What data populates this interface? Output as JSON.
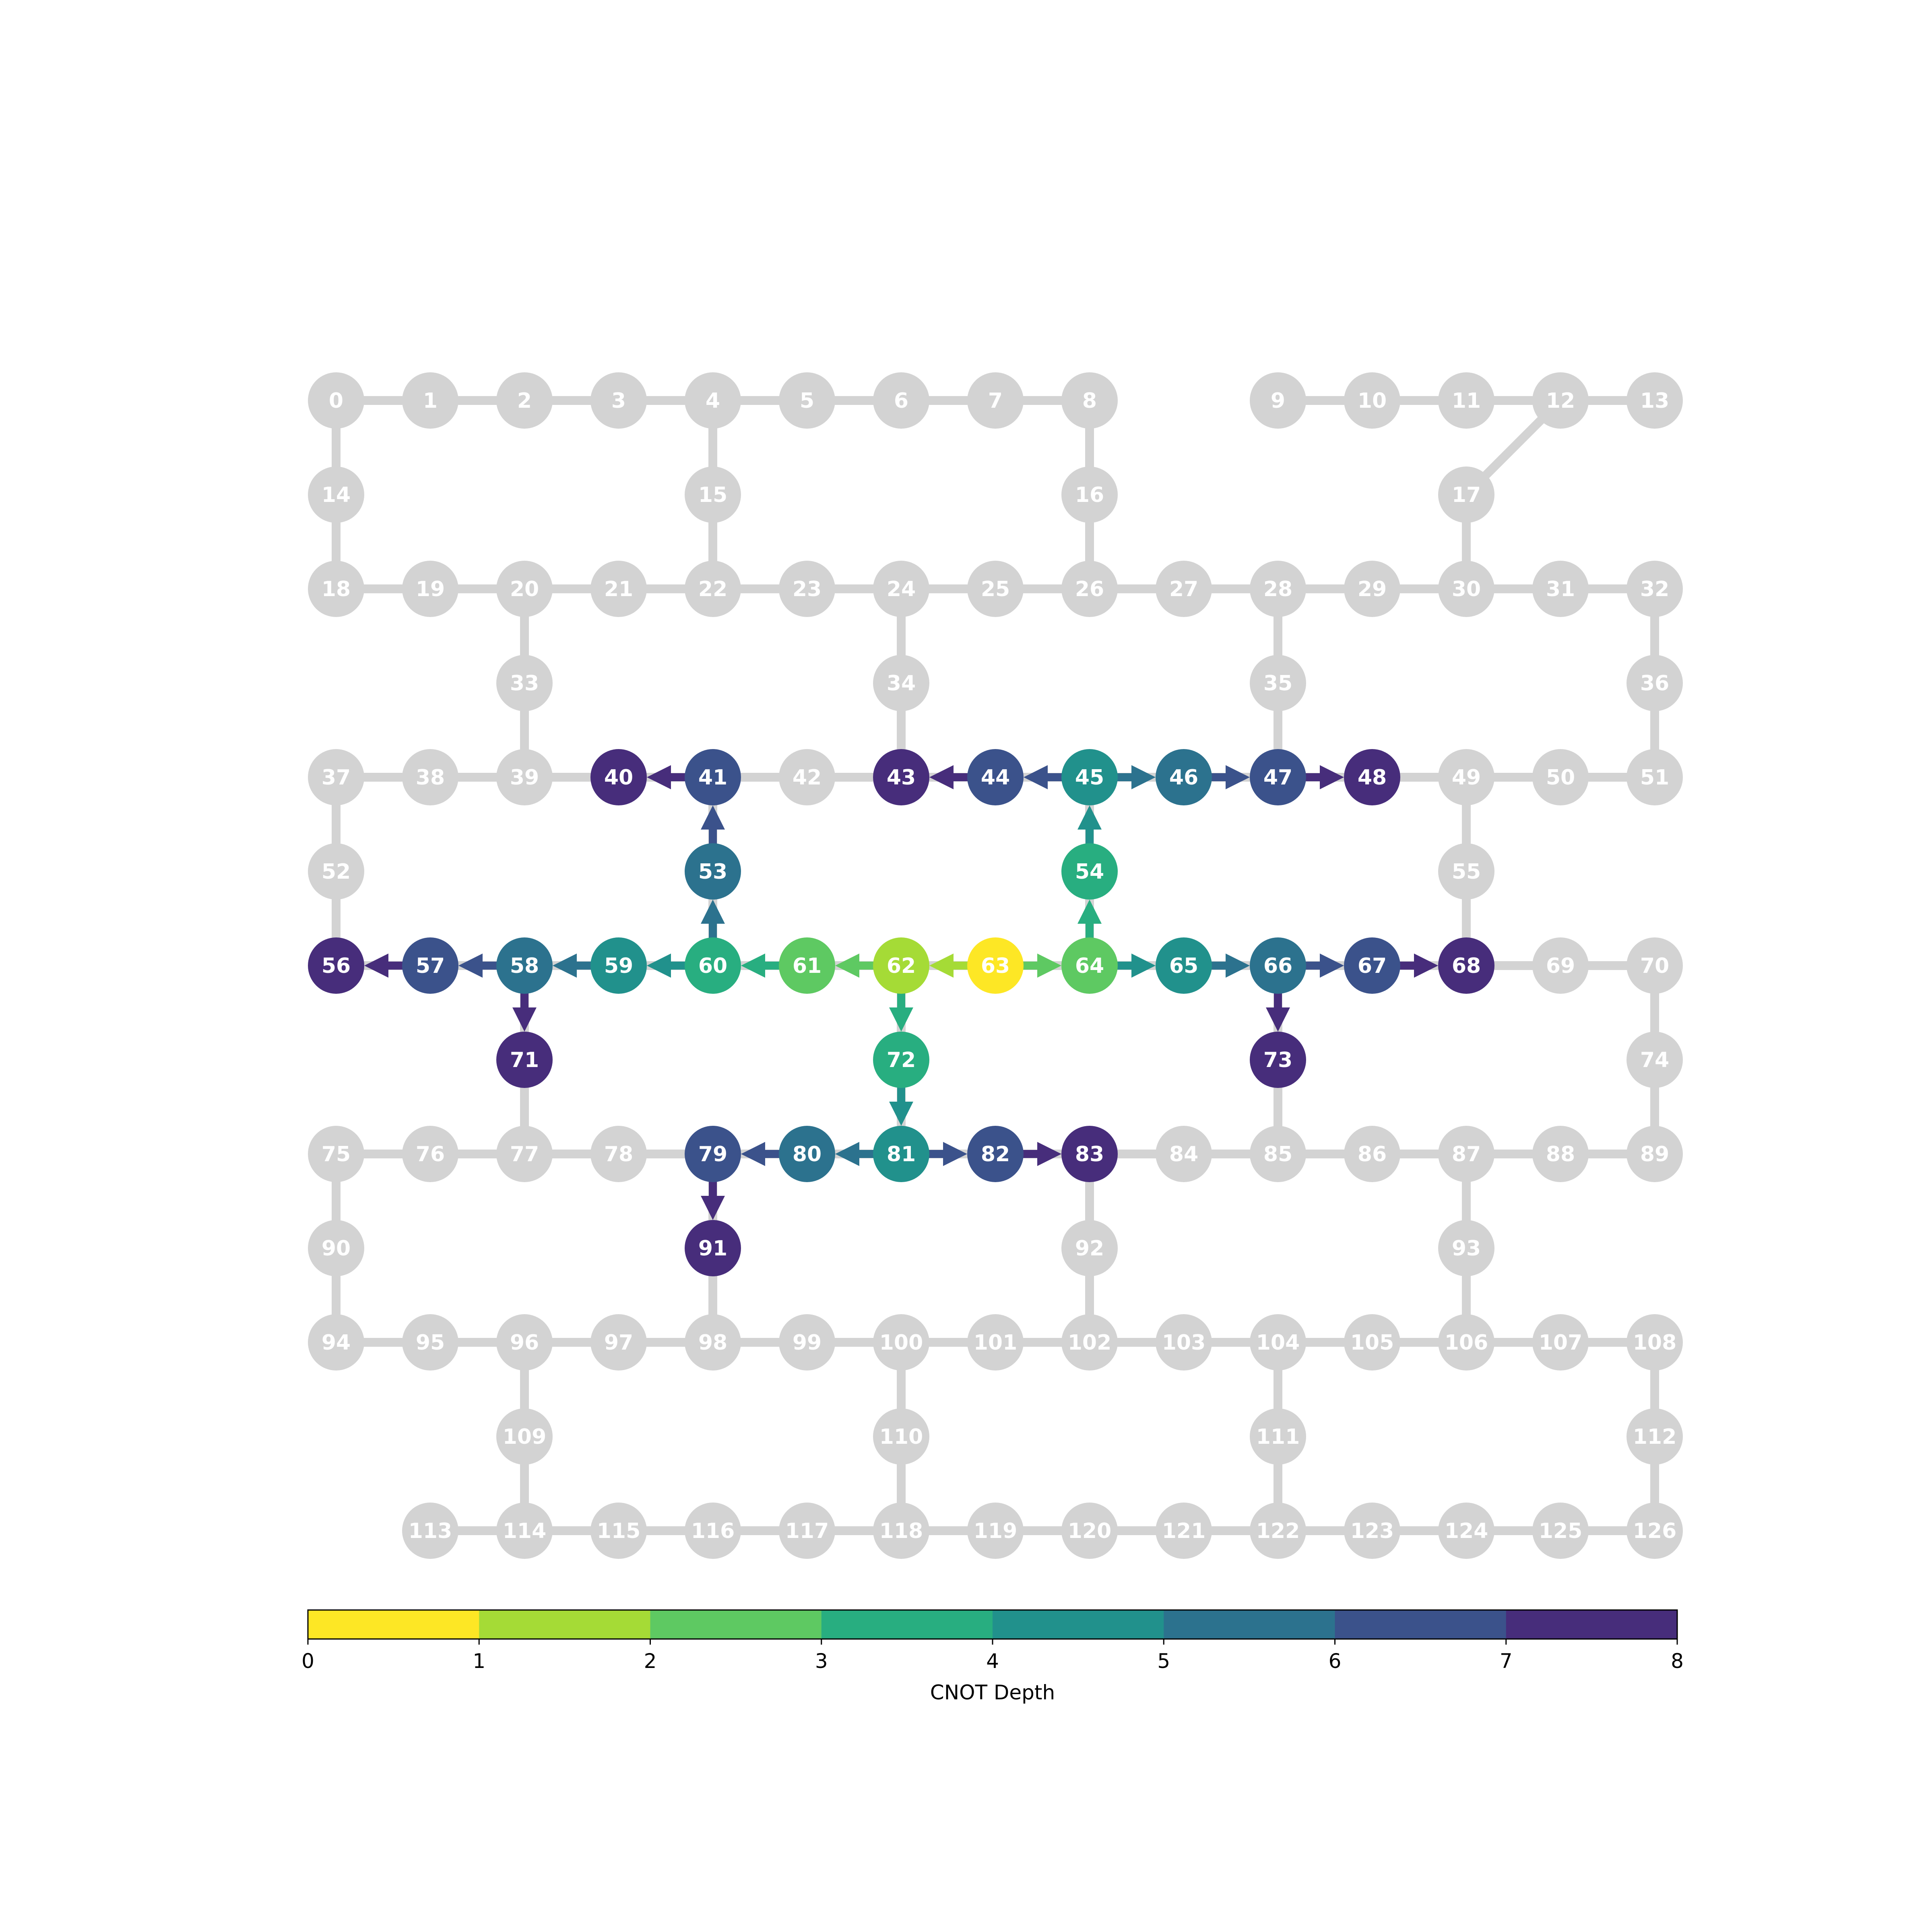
{
  "chart_data": {
    "type": "graph",
    "description": "heavy-hex coupling map with CNOT fan-out tree",
    "inactive_color": "#d3d3d3",
    "label_color": "#ffffff",
    "rows": [
      {
        "qubits": [
          0,
          1,
          2,
          3,
          4,
          5,
          6,
          7,
          8,
          null,
          9,
          10,
          11,
          12,
          13
        ],
        "start_col": 0
      },
      {
        "qubits": [
          14,
          15,
          16,
          17
        ],
        "cols": [
          0,
          4,
          8,
          12
        ]
      },
      {
        "qubits": [
          18,
          19,
          20,
          21,
          22,
          23,
          24,
          25,
          26,
          27,
          28,
          29,
          30,
          31,
          32
        ],
        "start_col": 0
      },
      {
        "qubits": [
          33,
          34,
          35,
          36
        ],
        "cols": [
          2,
          6,
          10,
          14
        ]
      },
      {
        "qubits": [
          37,
          38,
          39,
          40,
          41,
          42,
          43,
          44,
          45,
          46,
          47,
          48,
          49,
          50,
          51
        ],
        "start_col": 0
      },
      {
        "qubits": [
          52,
          53,
          54,
          55
        ],
        "cols": [
          0,
          4,
          8,
          12
        ]
      },
      {
        "qubits": [
          56,
          57,
          58,
          59,
          60,
          61,
          62,
          63,
          64,
          65,
          66,
          67,
          68,
          69,
          70
        ],
        "start_col": 0
      },
      {
        "qubits": [
          71,
          72,
          73,
          74
        ],
        "cols": [
          2,
          6,
          10,
          14
        ]
      },
      {
        "qubits": [
          75,
          76,
          77,
          78,
          79,
          80,
          81,
          82,
          83,
          84,
          85,
          86,
          87,
          88,
          89
        ],
        "start_col": 0
      },
      {
        "qubits": [
          90,
          91,
          92,
          93
        ],
        "cols": [
          0,
          4,
          8,
          12
        ]
      },
      {
        "qubits": [
          94,
          95,
          96,
          97,
          98,
          99,
          100,
          101,
          102,
          103,
          104,
          105,
          106,
          107,
          108
        ],
        "start_col": 0
      },
      {
        "qubits": [
          109,
          110,
          111,
          112
        ],
        "cols": [
          2,
          6,
          10,
          14
        ]
      },
      {
        "qubits": [
          113,
          114,
          115,
          116,
          117,
          118,
          119,
          120,
          121,
          122,
          123,
          124,
          125,
          126
        ],
        "start_col": 1
      }
    ],
    "vertical_links": [
      [
        0,
        14
      ],
      [
        14,
        18
      ],
      [
        4,
        15
      ],
      [
        15,
        22
      ],
      [
        8,
        16
      ],
      [
        16,
        26
      ],
      [
        12,
        17
      ],
      [
        17,
        30
      ],
      [
        20,
        33
      ],
      [
        33,
        39
      ],
      [
        24,
        34
      ],
      [
        34,
        43
      ],
      [
        28,
        35
      ],
      [
        35,
        47
      ],
      [
        32,
        36
      ],
      [
        36,
        51
      ],
      [
        37,
        52
      ],
      [
        52,
        56
      ],
      [
        41,
        53
      ],
      [
        53,
        60
      ],
      [
        45,
        54
      ],
      [
        54,
        64
      ],
      [
        49,
        55
      ],
      [
        55,
        68
      ],
      [
        58,
        71
      ],
      [
        71,
        77
      ],
      [
        62,
        72
      ],
      [
        72,
        81
      ],
      [
        66,
        73
      ],
      [
        73,
        85
      ],
      [
        70,
        74
      ],
      [
        74,
        89
      ],
      [
        75,
        90
      ],
      [
        90,
        94
      ],
      [
        79,
        91
      ],
      [
        91,
        98
      ],
      [
        83,
        92
      ],
      [
        92,
        102
      ],
      [
        87,
        93
      ],
      [
        93,
        106
      ],
      [
        96,
        109
      ],
      [
        109,
        114
      ],
      [
        100,
        110
      ],
      [
        110,
        118
      ],
      [
        104,
        111
      ],
      [
        111,
        122
      ],
      [
        108,
        112
      ],
      [
        112,
        126
      ]
    ],
    "depth": {
      "63": 0,
      "62": 1,
      "64": 2,
      "61": 2,
      "60": 3,
      "72": 3,
      "54": 3,
      "59": 4,
      "81": 4,
      "45": 4,
      "65": 4,
      "53": 5,
      "58": 5,
      "80": 5,
      "46": 5,
      "66": 5,
      "41": 6,
      "57": 6,
      "79": 6,
      "82": 6,
      "44": 6,
      "47": 6,
      "67": 6,
      "40": 7,
      "56": 7,
      "71": 7,
      "91": 7,
      "83": 7,
      "43": 7,
      "48": 7,
      "73": 7,
      "68": 7
    },
    "cnots": [
      [
        63,
        62
      ],
      [
        63,
        64
      ],
      [
        62,
        61
      ],
      [
        62,
        72
      ],
      [
        64,
        54
      ],
      [
        61,
        60
      ],
      [
        72,
        81
      ],
      [
        54,
        45
      ],
      [
        64,
        65
      ],
      [
        60,
        59
      ],
      [
        60,
        53
      ],
      [
        81,
        80
      ],
      [
        45,
        46
      ],
      [
        65,
        66
      ],
      [
        59,
        58
      ],
      [
        53,
        41
      ],
      [
        80,
        79
      ],
      [
        81,
        82
      ],
      [
        45,
        44
      ],
      [
        46,
        47
      ],
      [
        66,
        67
      ],
      [
        58,
        57
      ],
      [
        41,
        40
      ],
      [
        79,
        91
      ],
      [
        82,
        83
      ],
      [
        44,
        43
      ],
      [
        47,
        48
      ],
      [
        66,
        73
      ],
      [
        67,
        68
      ],
      [
        57,
        56
      ],
      [
        58,
        71
      ]
    ],
    "colorbar": {
      "label": "CNOT Depth",
      "ticks": [
        "0",
        "1",
        "2",
        "3",
        "4",
        "5",
        "6",
        "7",
        "8"
      ],
      "range": [
        0,
        8
      ],
      "colors": [
        "#fde725",
        "#a5db36",
        "#5ec962",
        "#28ae80",
        "#21918c",
        "#2c728e",
        "#3b528b",
        "#472d7b"
      ]
    }
  }
}
